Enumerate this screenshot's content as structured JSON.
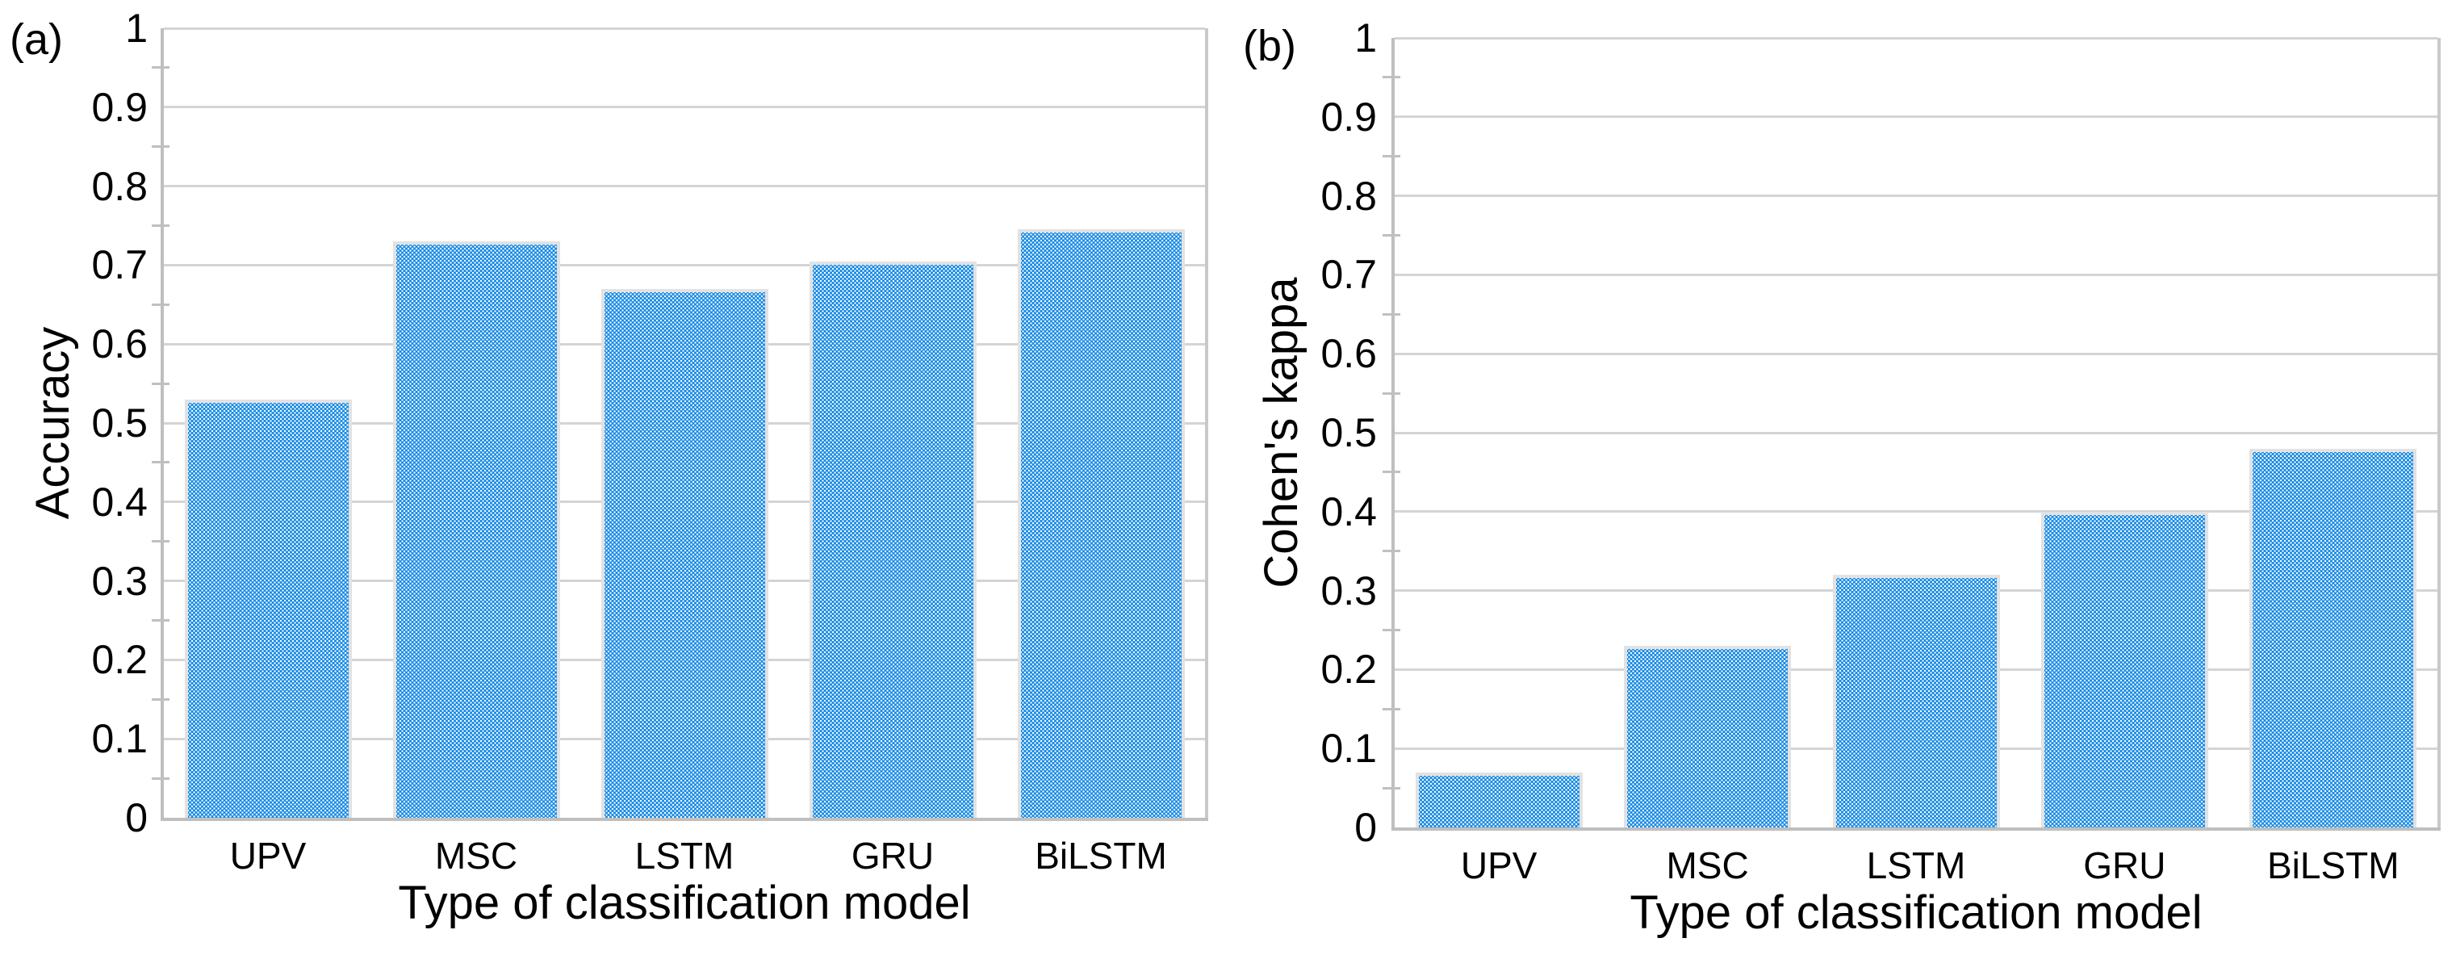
{
  "figure": {
    "background": "#ffffff",
    "panel_count": 2
  },
  "chart_data": [
    {
      "type": "bar",
      "letter": "(a)",
      "title": "",
      "xlabel": "Type of classification model",
      "ylabel": "Accuracy",
      "categories": [
        "UPV",
        "MSC",
        "LSTM",
        "GRU",
        "BiLSTM"
      ],
      "values": [
        0.53,
        0.73,
        0.67,
        0.705,
        0.745
      ],
      "ylim": [
        0,
        1
      ],
      "ytick_step": 0.1,
      "yticks": [
        "0",
        "0.1",
        "0.2",
        "0.3",
        "0.4",
        "0.5",
        "0.6",
        "0.7",
        "0.8",
        "0.9",
        "1"
      ],
      "minor_tick_step": 0.05,
      "grid": "horizontal-major-on",
      "legend": "none",
      "series_name": "Accuracy"
    },
    {
      "type": "bar",
      "letter": "(b)",
      "title": "",
      "xlabel": "Type of classification model",
      "ylabel": "Cohen's kappa",
      "categories": [
        "UPV",
        "MSC",
        "LSTM",
        "GRU",
        "BiLSTM"
      ],
      "values": [
        0.07,
        0.23,
        0.32,
        0.4,
        0.48
      ],
      "ylim": [
        0,
        1
      ],
      "ytick_step": 0.1,
      "yticks": [
        "0",
        "0.1",
        "0.2",
        "0.3",
        "0.4",
        "0.5",
        "0.6",
        "0.7",
        "0.8",
        "0.9",
        "1"
      ],
      "minor_tick_step": 0.05,
      "grid": "horizontal-major-on",
      "legend": "none",
      "series_name": "Cohen's kappa"
    }
  ],
  "colors": {
    "bar_fill": "#1b8ce4",
    "bar_pattern_dots": "#ffffff",
    "bar_border": "#e2e2e2",
    "gridline": "#d4d4d4",
    "axis_line": "#bfbfbf",
    "text": "#000000",
    "background": "#ffffff"
  }
}
